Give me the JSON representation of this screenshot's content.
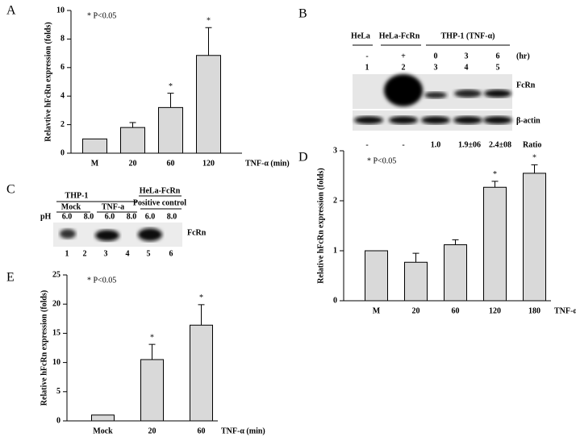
{
  "chart_data": [
    {
      "type": "bar",
      "panel": "A",
      "annotation": "* P<0.05",
      "y_label": "Relavtive hFcRn expression (folds)",
      "x_label": "TNF-α (min)",
      "categories": [
        "M",
        "20",
        "60",
        "120"
      ],
      "values": [
        1,
        1.8,
        3.2,
        6.85
      ],
      "errors": [
        null,
        0.35,
        1.0,
        1.95
      ],
      "significance": [
        null,
        null,
        "*",
        "*"
      ],
      "color": "#d9d9d9",
      "ylim": [
        0,
        10
      ],
      "yticks": [
        0,
        2,
        4,
        6,
        8,
        10
      ]
    },
    {
      "type": "bar",
      "panel": "D",
      "annotation": "* P<0.05",
      "y_label": "Relative hFcRn expression (folds)",
      "x_label": "TNF-α (min)",
      "categories": [
        "M",
        "20",
        "60",
        "120",
        "180"
      ],
      "values": [
        1,
        0.77,
        1.12,
        2.27,
        2.55
      ],
      "errors": [
        null,
        0.18,
        0.1,
        0.12,
        0.17
      ],
      "significance": [
        null,
        null,
        null,
        "*",
        "*"
      ],
      "color": "#d9d9d9",
      "ylim": [
        0,
        3
      ],
      "yticks": [
        0,
        1,
        2,
        3
      ]
    },
    {
      "type": "bar",
      "panel": "E",
      "annotation": "* P<0.05",
      "y_label": "Relative hFcRn  expression (folds)",
      "x_label": "TNF-α (min)",
      "categories": [
        "Mock",
        "20",
        "60"
      ],
      "values": [
        1,
        10.5,
        16.4
      ],
      "errors": [
        null,
        2.6,
        3.5
      ],
      "significance": [
        null,
        "*",
        "*"
      ],
      "color": "#d9d9d9",
      "ylim": [
        0,
        25
      ],
      "yticks": [
        0,
        5,
        10,
        15,
        20,
        25
      ]
    }
  ],
  "blots": {
    "B": {
      "panel": "B",
      "headers": [
        "HeLa",
        "HeLa-FcRn",
        "THP-1 (TNF-α)"
      ],
      "treatments": [
        "-",
        "+",
        "0",
        "3",
        "6",
        "(hr)"
      ],
      "lanes": [
        "1",
        "2",
        "3",
        "4",
        "5"
      ],
      "bands": [
        "FcRn",
        "β-actin"
      ],
      "ratios": [
        "-",
        "-",
        "1.0",
        "1.9±06",
        "2.4±08",
        "Ratio"
      ]
    },
    "C": {
      "panel": "C",
      "headers": [
        "THP-1",
        "HeLa-FcRn"
      ],
      "groups": [
        "Mock",
        "TNF-a",
        "Positive control"
      ],
      "ph_label": "pH",
      "ph": [
        "6.0",
        "8.0",
        "6.0",
        "8.0",
        "6.0",
        "8.0"
      ],
      "band": "FcRn",
      "lanes": [
        "1",
        "2",
        "3",
        "4",
        "5",
        "6"
      ]
    }
  }
}
